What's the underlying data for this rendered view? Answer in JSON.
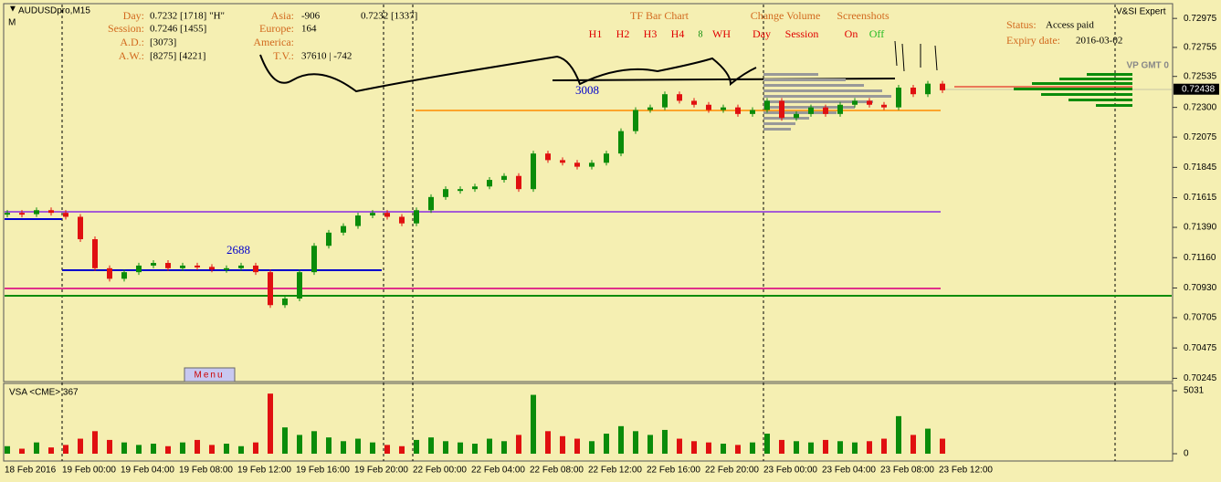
{
  "window": {
    "symbol": "AUDUSDpro,M15",
    "timeframe": "M",
    "expert": "V&SI Expert"
  },
  "info": {
    "day_label": "Day:",
    "day_value": "0.7232  [1718]   \"H\"",
    "session_label": "Session:",
    "session_value": "0.7246  [1455]",
    "ad_label": "A.D.:",
    "ad_value": "[3073]",
    "aw_label": "A.W.:",
    "aw_value": "[8275]  [4221]",
    "asia_label": "Asia:",
    "asia_value": "-906",
    "asia_extra": "0.7232 [1337]",
    "europe_label": "Europe:",
    "europe_value": "164",
    "america_label": "America:",
    "tv_label": "T.V.:",
    "tv_value": "37610 | -742"
  },
  "panel": {
    "tf_title": "TF Bar Chart",
    "tf_buttons": [
      "H1",
      "H2",
      "H3",
      "H4",
      "8",
      "WH"
    ],
    "cv_title": "Change Volume",
    "cv_buttons": [
      "Day",
      "Session"
    ],
    "ss_title": "Screenshots",
    "ss_on": "On",
    "ss_off": "Off",
    "status_label": "Status:",
    "status_value": "Access paid",
    "expiry_label": "Expiry date:",
    "expiry_value": "2016-03-02",
    "vp_label": "VP GMT 0",
    "level_a": "3008",
    "level_b": "2688",
    "menu": "Menu"
  },
  "chart_data": {
    "type": "candlestick",
    "closes": [
      0.715,
      0.7149,
      0.7152,
      0.715,
      0.7147,
      0.713,
      0.7108,
      0.71,
      0.7105,
      0.711,
      0.7112,
      0.7108,
      0.711,
      0.7109,
      0.7107,
      0.7108,
      0.711,
      0.7105,
      0.708,
      0.7085,
      0.7105,
      0.7125,
      0.7135,
      0.714,
      0.7148,
      0.715,
      0.7147,
      0.7142,
      0.7152,
      0.7162,
      0.7168,
      0.7168,
      0.717,
      0.7175,
      0.7178,
      0.7168,
      0.7195,
      0.719,
      0.7188,
      0.7185,
      0.7188,
      0.7195,
      0.7212,
      0.7228,
      0.723,
      0.724,
      0.7235,
      0.7232,
      0.7228,
      0.723,
      0.7225,
      0.7228,
      0.7235,
      0.7222,
      0.7225,
      0.723,
      0.7225,
      0.7232,
      0.7235,
      0.7232,
      0.723,
      0.7245,
      0.724,
      0.7248,
      0.7243
    ],
    "ylim": [
      0.7022,
      0.7308
    ],
    "yticks": [
      0.72975,
      0.72755,
      0.72535,
      {
        "value": 0.723,
        "label": "0.72300"
      },
      0.72075,
      0.71845,
      0.71615,
      {
        "value": 0.7139,
        "label": "0.71390"
      },
      {
        "value": 0.7116,
        "label": "0.71160"
      },
      {
        "value": 0.7093,
        "label": "0.70930"
      },
      0.70705,
      0.70475,
      0.70245
    ],
    "current_price": 0.72438,
    "x_labels": [
      "18 Feb 2016",
      "19 Feb 00:00",
      "19 Feb 04:00",
      "19 Feb 08:00",
      "19 Feb 12:00",
      "19 Feb 16:00",
      "19 Feb 20:00",
      "22 Feb 00:00",
      "22 Feb 04:00",
      "22 Feb 08:00",
      "22 Feb 12:00",
      "22 Feb 16:00",
      "22 Feb 20:00",
      "23 Feb 00:00",
      "23 Feb 04:00",
      "23 Feb 08:00",
      "23 Feb 12:00"
    ],
    "volume_title": "VSA <CME> 367",
    "volumes": [
      600,
      400,
      900,
      500,
      700,
      1200,
      1800,
      1100,
      900,
      700,
      800,
      600,
      900,
      1100,
      700,
      800,
      600,
      900,
      4800,
      2100,
      1500,
      1800,
      1300,
      1000,
      1200,
      900,
      700,
      600,
      1100,
      1300,
      1000,
      900,
      800,
      1200,
      1000,
      1500,
      4700,
      1800,
      1400,
      1200,
      1000,
      1600,
      2200,
      1800,
      1500,
      1900,
      1200,
      1000,
      900,
      800,
      700,
      900,
      1600,
      1100,
      1000,
      900,
      1100,
      1000,
      900,
      1000,
      1200,
      3000,
      1500,
      2000,
      1200
    ],
    "vlim": [
      0,
      5031
    ],
    "vticks": [
      5031,
      0
    ],
    "colors": {
      "up": "#0a8c0a",
      "down": "#e01010"
    }
  }
}
